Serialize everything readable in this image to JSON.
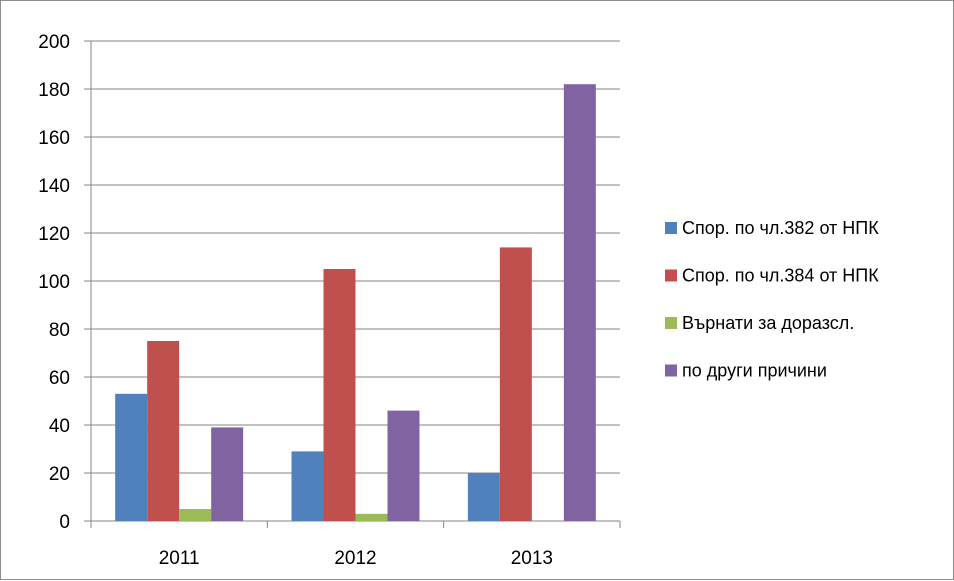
{
  "chart_data": {
    "type": "bar",
    "title": "",
    "xlabel": "",
    "ylabel": "",
    "categories": [
      "2011",
      "2012",
      "2013"
    ],
    "ylim": [
      0,
      200
    ],
    "yticks": [
      0,
      20,
      40,
      60,
      80,
      100,
      120,
      140,
      160,
      180,
      200
    ],
    "grid": true,
    "legend_position": "right",
    "series": [
      {
        "name": "Спор. по чл.382 от НПК",
        "color": "#4f81bd",
        "values": [
          53,
          29,
          20
        ]
      },
      {
        "name": "Спор. по чл.384 от НПК",
        "color": "#c0504d",
        "values": [
          75,
          105,
          114
        ]
      },
      {
        "name": "Върнати за доразсл.",
        "color": "#9bbb59",
        "values": [
          5,
          3,
          0
        ]
      },
      {
        "name": "по други причини",
        "color": "#8064a2",
        "values": [
          39,
          46,
          182
        ]
      }
    ]
  }
}
